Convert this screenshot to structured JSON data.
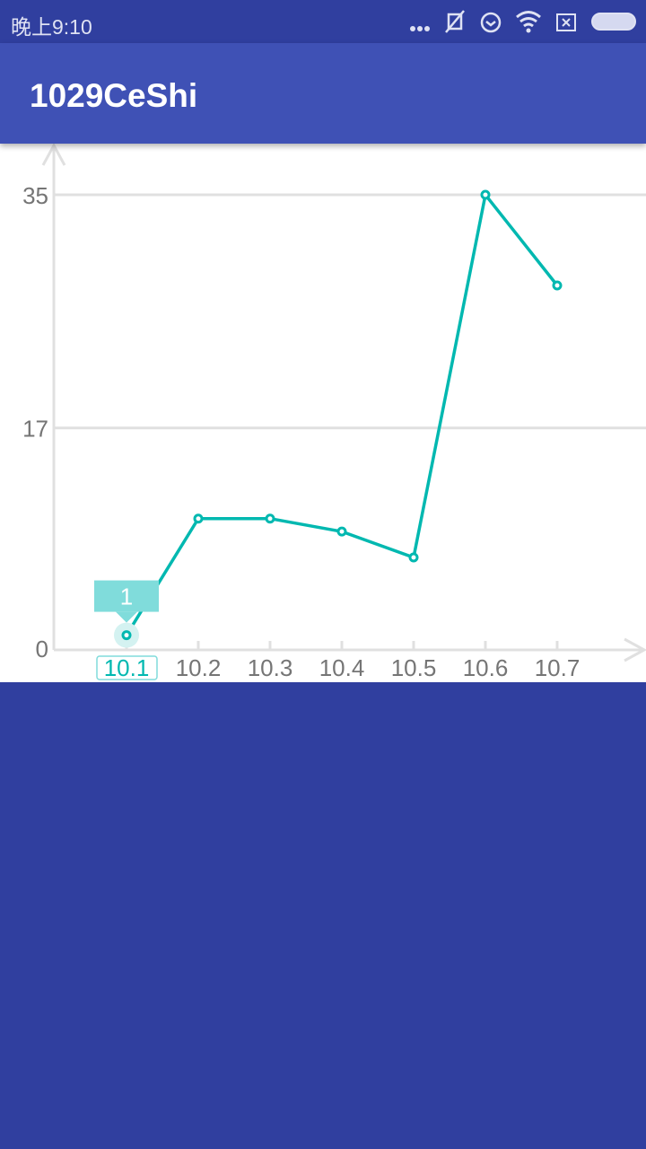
{
  "status_bar": {
    "time": "晚上9:10",
    "icons": [
      "more-dots-icon",
      "vibrate-muted-icon",
      "alarm-icon",
      "wifi-icon",
      "sim-none-icon",
      "battery-icon"
    ]
  },
  "app_bar": {
    "title": "1029CeShi"
  },
  "colors": {
    "line": "#00b8b0",
    "tooltip": "#80dcdb",
    "grid": "#e0e0e0",
    "label": "#757575",
    "status_bar": "#303f9f",
    "app_bar": "#3f51b5"
  },
  "chart_data": {
    "type": "line",
    "categories": [
      "10.1",
      "10.2",
      "10.3",
      "10.4",
      "10.5",
      "10.6",
      "10.7"
    ],
    "values": [
      1,
      10,
      10,
      9,
      7,
      35,
      28
    ],
    "y_ticks": [
      "0",
      "17",
      "35"
    ],
    "ylim": [
      0,
      35
    ],
    "grid": "horizontal",
    "selected_index": 0,
    "tooltip": "1"
  }
}
